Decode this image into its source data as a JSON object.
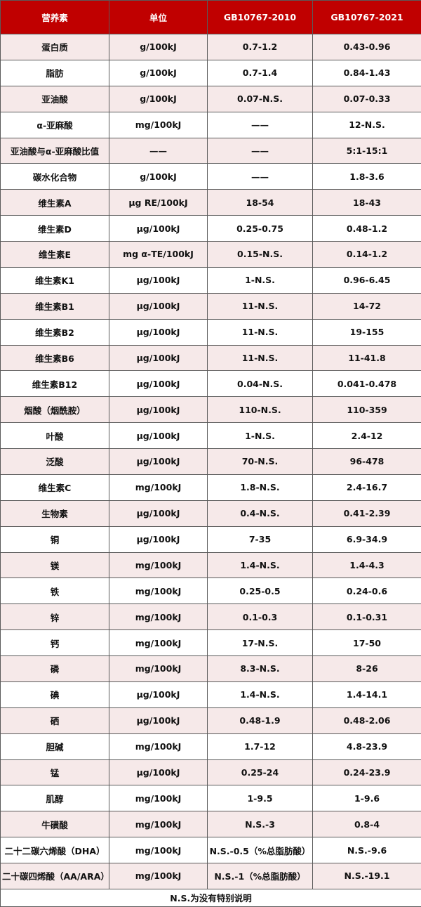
{
  "colors": {
    "header": "#c00000",
    "odd_row": "#f6e9e9",
    "even_row": "#ffffff",
    "border": "#5a5a5a"
  },
  "headers": [
    "营养素",
    "单位",
    "GB10767-2010",
    "GB10767-2021"
  ],
  "rows": [
    [
      "蛋白质",
      "g/100kJ",
      "0.7-1.2",
      "0.43-0.96"
    ],
    [
      "脂肪",
      "g/100kJ",
      "0.7-1.4",
      "0.84-1.43"
    ],
    [
      "亚油酸",
      "g/100kJ",
      "0.07-N.S.",
      "0.07-0.33"
    ],
    [
      "α-亚麻酸",
      "mg/100kJ",
      "——",
      "12-N.S."
    ],
    [
      "亚油酸与α-亚麻酸比值",
      "——",
      "——",
      "5:1-15:1"
    ],
    [
      "碳水化合物",
      "g/100kJ",
      "——",
      "1.8-3.6"
    ],
    [
      "维生素A",
      "μg RE/100kJ",
      "18-54",
      "18-43"
    ],
    [
      "维生素D",
      "μg/100kJ",
      "0.25-0.75",
      "0.48-1.2"
    ],
    [
      "维生素E",
      "mg α-TE/100kJ",
      "0.15-N.S.",
      "0.14-1.2"
    ],
    [
      "维生素K1",
      "μg/100kJ",
      "1-N.S.",
      "0.96-6.45"
    ],
    [
      "维生素B1",
      "μg/100kJ",
      "11-N.S.",
      "14-72"
    ],
    [
      "维生素B2",
      "μg/100kJ",
      "11-N.S.",
      "19-155"
    ],
    [
      "维生素B6",
      "μg/100kJ",
      "11-N.S.",
      "11-41.8"
    ],
    [
      "维生素B12",
      "μg/100kJ",
      "0.04-N.S.",
      "0.041-0.478"
    ],
    [
      "烟酸（烟酰胺）",
      "μg/100kJ",
      "110-N.S.",
      "110-359"
    ],
    [
      "叶酸",
      "μg/100kJ",
      "1-N.S.",
      "2.4-12"
    ],
    [
      "泛酸",
      "μg/100kJ",
      "70-N.S.",
      "96-478"
    ],
    [
      "维生素C",
      "mg/100kJ",
      "1.8-N.S.",
      "2.4-16.7"
    ],
    [
      "生物素",
      "μg/100kJ",
      "0.4-N.S.",
      "0.41-2.39"
    ],
    [
      "铜",
      "μg/100kJ",
      "7-35",
      "6.9-34.9"
    ],
    [
      "镁",
      "mg/100kJ",
      "1.4-N.S.",
      "1.4-4.3"
    ],
    [
      "铁",
      "mg/100kJ",
      "0.25-0.5",
      "0.24-0.6"
    ],
    [
      "锌",
      "mg/100kJ",
      "0.1-0.3",
      "0.1-0.31"
    ],
    [
      "钙",
      "mg/100kJ",
      "17-N.S.",
      "17-50"
    ],
    [
      "磷",
      "mg/100kJ",
      "8.3-N.S.",
      "8-26"
    ],
    [
      "碘",
      "μg/100kJ",
      "1.4-N.S.",
      "1.4-14.1"
    ],
    [
      "硒",
      "μg/100kJ",
      "0.48-1.9",
      "0.48-2.06"
    ],
    [
      "胆碱",
      "mg/100kJ",
      "1.7-12",
      "4.8-23.9"
    ],
    [
      "锰",
      "μg/100kJ",
      "0.25-24",
      "0.24-23.9"
    ],
    [
      "肌醇",
      "mg/100kJ",
      "1-9.5",
      "1-9.6"
    ],
    [
      "牛磺酸",
      "mg/100kJ",
      "N.S.-3",
      "0.8-4"
    ],
    [
      "二十二碳六烯酸（DHA）",
      "mg/100kJ",
      "N.S.-0.5（%总脂肪酸）",
      "N.S.-9.6"
    ],
    [
      "二十碳四烯酸（AA/ARA）",
      "mg/100kJ",
      "N.S.-1（%总脂肪酸）",
      "N.S.-19.1"
    ]
  ],
  "footer": "N.S.为没有特别说明"
}
